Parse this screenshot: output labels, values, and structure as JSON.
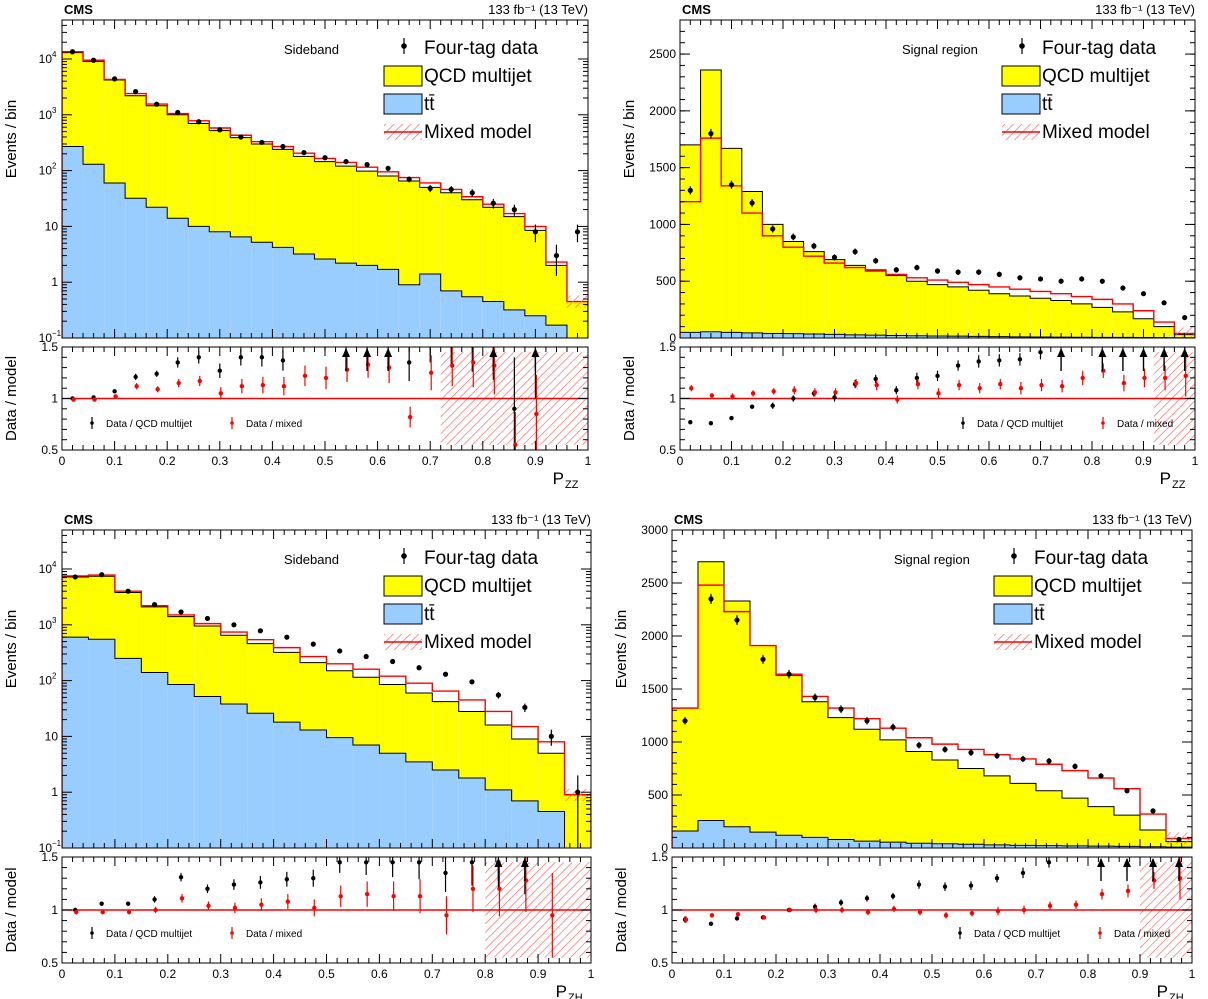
{
  "colors": {
    "qcd": "#ffff00",
    "ttbar": "#99ccff",
    "mixed": "#ff0000",
    "data": "#000000"
  },
  "ticks": {
    "x": [
      "0",
      "0.1",
      "0.2",
      "0.3",
      "0.4",
      "0.5",
      "0.6",
      "0.7",
      "0.8",
      "0.9",
      "1"
    ],
    "ratio": [
      "0.5",
      "1",
      "1.5"
    ]
  },
  "chart_data": [
    {
      "type": "histogram",
      "experiment": "CMS",
      "lumi": "133 fb⁻¹ (13 TeV)",
      "region": "Sideband",
      "ylabel": "Events / bin",
      "ratio_ylabel": "Data / model",
      "xlabel": "P",
      "xlabel_sub": "ZZ",
      "log": true,
      "ylim": [
        0.1,
        50000
      ],
      "y_ticks": [
        {
          "v": 0.1,
          "b": "10",
          "e": "−1"
        },
        {
          "v": 1,
          "t": "1"
        },
        {
          "v": 10,
          "t": "10"
        },
        {
          "v": 100,
          "b": "10",
          "e": "2"
        },
        {
          "v": 1000,
          "b": "10",
          "e": "3"
        },
        {
          "v": 10000,
          "b": "10",
          "e": "4"
        }
      ],
      "legend": [
        "Four-tag data",
        "QCD multijet",
        "tt̄",
        "Mixed model"
      ],
      "ratio_legend": [
        "Data / QCD multijet",
        "Data / mixed"
      ],
      "ratio_ylim": [
        0.5,
        1.5
      ],
      "bin_edges": [
        0,
        0.04,
        0.08,
        0.12,
        0.16,
        0.2,
        0.24,
        0.28,
        0.32,
        0.36,
        0.4,
        0.44,
        0.48,
        0.52,
        0.56,
        0.6,
        0.64,
        0.68,
        0.72,
        0.76,
        0.8,
        0.84,
        0.88,
        0.92,
        0.96,
        1.0
      ],
      "ttbar": [
        270,
        130,
        60,
        32,
        22,
        14,
        10,
        8,
        6.5,
        5.2,
        4.2,
        3.2,
        2.6,
        2.2,
        2.0,
        1.7,
        0.9,
        1.4,
        0.7,
        0.55,
        0.45,
        0.32,
        0.25,
        0.17,
        0.05
      ],
      "stack_total": [
        13000,
        9000,
        4200,
        2200,
        1450,
        1000,
        700,
        520,
        390,
        300,
        240,
        180,
        145,
        120,
        98,
        80,
        65,
        50,
        40,
        30,
        22,
        15,
        8.5,
        2.0,
        0.45
      ],
      "mixed": [
        13500,
        9500,
        4300,
        2400,
        1560,
        1050,
        780,
        580,
        430,
        330,
        270,
        205,
        165,
        140,
        115,
        95,
        75,
        60,
        46,
        34,
        25,
        17,
        10,
        2.3,
        0.45
      ],
      "data": [
        13500,
        9500,
        4400,
        2600,
        1550,
        1100,
        750,
        540,
        400,
        320,
        270,
        210,
        170,
        145,
        128,
        110,
        70,
        48,
        46,
        40,
        26,
        20,
        8,
        3,
        8
      ],
      "data_err": [
        120,
        97,
        66,
        51,
        39,
        33,
        27,
        23,
        20,
        18,
        16,
        14,
        13,
        12,
        11,
        10,
        8.4,
        6.9,
        6.8,
        6.3,
        5.1,
        4.5,
        2.8,
        1.7,
        2.8
      ],
      "ratio_qcd": [
        1.0,
        1.01,
        1.07,
        1.21,
        1.24,
        1.35,
        1.4,
        1.27,
        1.4,
        1.4,
        1.37,
        1.6,
        1.6,
        1.6,
        1.6,
        1.6,
        1.35,
        1.6,
        1.6,
        1.6,
        1.6,
        0.9,
        1.6,
        null,
        null
      ],
      "ratio_qcd_err": [
        0.02,
        0.02,
        0.02,
        0.03,
        0.03,
        0.05,
        0.06,
        0.07,
        0.08,
        0.09,
        0.1,
        0.12,
        0.14,
        0.16,
        0.17,
        0.19,
        0.18,
        0.25,
        0.28,
        0.34,
        0.42,
        0.5,
        0.6,
        null,
        null
      ],
      "ratio_mixed": [
        0.99,
        0.99,
        1.02,
        1.12,
        1.09,
        1.15,
        1.17,
        1.05,
        1.12,
        1.13,
        1.12,
        1.22,
        1.2,
        1.28,
        1.33,
        1.3,
        0.82,
        1.25,
        1.32,
        1.35,
        1.32,
        0.55,
        0.85,
        null,
        null
      ],
      "ratio_mixed_err": [
        0.02,
        0.02,
        0.02,
        0.03,
        0.03,
        0.04,
        0.05,
        0.06,
        0.07,
        0.08,
        0.09,
        0.1,
        0.11,
        0.12,
        0.13,
        0.15,
        0.1,
        0.17,
        0.2,
        0.24,
        0.28,
        0.32,
        0.38,
        null,
        null
      ],
      "ratio_qcd_arrows": [
        13,
        14,
        15,
        20,
        22
      ],
      "ratio_band_from": 18
    },
    {
      "type": "histogram",
      "experiment": "CMS",
      "lumi": "133 fb⁻¹ (13 TeV)",
      "region": "Signal region",
      "ylabel": "Events / bin",
      "ratio_ylabel": "Data / model",
      "xlabel": "P",
      "xlabel_sub": "ZZ",
      "log": false,
      "ylim": [
        0,
        2800
      ],
      "y_ticks": [
        {
          "v": 0,
          "t": "0"
        },
        {
          "v": 500,
          "t": "500"
        },
        {
          "v": 1000,
          "t": "1000"
        },
        {
          "v": 1500,
          "t": "1500"
        },
        {
          "v": 2000,
          "t": "2000"
        },
        {
          "v": 2500,
          "t": "2500"
        }
      ],
      "legend": [
        "Four-tag data",
        "QCD multijet",
        "tt̄",
        "Mixed model"
      ],
      "ratio_legend": [
        "Data / QCD multijet",
        "Data / mixed"
      ],
      "ratio_ylim": [
        0.5,
        1.5
      ],
      "bin_edges": [
        0,
        0.04,
        0.08,
        0.12,
        0.16,
        0.2,
        0.24,
        0.28,
        0.32,
        0.36,
        0.4,
        0.44,
        0.48,
        0.52,
        0.56,
        0.6,
        0.64,
        0.68,
        0.72,
        0.76,
        0.8,
        0.84,
        0.88,
        0.92,
        0.96,
        1.0
      ],
      "ttbar": [
        50,
        55,
        50,
        45,
        40,
        38,
        35,
        32,
        28,
        25,
        22,
        20,
        18,
        16,
        14,
        12,
        10,
        9,
        8,
        7,
        6,
        5,
        4,
        3,
        2
      ],
      "stack_total": [
        1700,
        2360,
        1670,
        1290,
        1000,
        850,
        760,
        690,
        640,
        600,
        550,
        500,
        470,
        450,
        420,
        390,
        370,
        350,
        330,
        300,
        270,
        230,
        170,
        100,
        30
      ],
      "mixed": [
        1200,
        1760,
        1340,
        1100,
        900,
        800,
        720,
        660,
        620,
        590,
        560,
        530,
        510,
        490,
        470,
        450,
        430,
        410,
        390,
        365,
        340,
        300,
        240,
        140,
        40
      ],
      "data": [
        1300,
        1800,
        1350,
        1190,
        960,
        890,
        810,
        710,
        760,
        680,
        600,
        620,
        590,
        580,
        580,
        560,
        530,
        520,
        500,
        520,
        500,
        440,
        390,
        310,
        180
      ],
      "data_err": [
        36,
        42,
        37,
        34,
        31,
        30,
        28,
        27,
        28,
        26,
        24,
        25,
        24,
        24,
        24,
        24,
        23,
        23,
        22,
        23,
        22,
        21,
        20,
        18,
        13
      ],
      "ratio_qcd": [
        0.77,
        0.76,
        0.81,
        0.92,
        0.93,
        1.0,
        1.05,
        1.01,
        1.14,
        1.19,
        1.08,
        1.2,
        1.22,
        1.32,
        1.36,
        1.37,
        1.38,
        1.45,
        1.6,
        1.6,
        1.6,
        1.6,
        1.6,
        1.6,
        1.6
      ],
      "ratio_qcd_err": [
        0.02,
        0.02,
        0.02,
        0.02,
        0.03,
        0.03,
        0.03,
        0.04,
        0.04,
        0.04,
        0.04,
        0.05,
        0.05,
        0.05,
        0.06,
        0.06,
        0.06,
        0.07,
        0.07,
        0.08,
        0.08,
        0.09,
        0.1,
        0.12,
        0.15
      ],
      "ratio_mixed": [
        1.1,
        1.03,
        1.02,
        1.05,
        1.07,
        1.08,
        1.06,
        1.06,
        1.15,
        1.13,
        0.99,
        1.14,
        1.05,
        1.13,
        1.1,
        1.14,
        1.1,
        1.13,
        1.12,
        1.2,
        1.27,
        1.15,
        1.2,
        1.2,
        1.22
      ],
      "ratio_mixed_err": [
        0.03,
        0.02,
        0.03,
        0.03,
        0.03,
        0.04,
        0.04,
        0.04,
        0.04,
        0.05,
        0.04,
        0.05,
        0.05,
        0.05,
        0.05,
        0.05,
        0.06,
        0.06,
        0.06,
        0.07,
        0.07,
        0.08,
        0.09,
        0.12,
        0.2
      ],
      "ratio_qcd_arrows": [
        18,
        20,
        21,
        22,
        23,
        24
      ],
      "ratio_band_from": 23
    },
    {
      "type": "histogram",
      "experiment": "CMS",
      "lumi": "133 fb⁻¹ (13 TeV)",
      "region": "Sideband",
      "ylabel": "Events / bin",
      "ratio_ylabel": "Data / model",
      "xlabel": "P",
      "xlabel_sub": "ZH",
      "log": true,
      "ylim": [
        0.1,
        50000
      ],
      "y_ticks": [
        {
          "v": 0.1,
          "b": "10",
          "e": "−1"
        },
        {
          "v": 1,
          "t": "1"
        },
        {
          "v": 10,
          "t": "10"
        },
        {
          "v": 100,
          "b": "10",
          "e": "2"
        },
        {
          "v": 1000,
          "b": "10",
          "e": "3"
        },
        {
          "v": 10000,
          "b": "10",
          "e": "4"
        }
      ],
      "legend": [
        "Four-tag data",
        "QCD multijet",
        "tt̄",
        "Mixed model"
      ],
      "ratio_legend": [
        "Data / QCD multijet",
        "Data / mixed"
      ],
      "ratio_ylim": [
        0.5,
        1.5
      ],
      "bin_edges": [
        0,
        0.05,
        0.1,
        0.15,
        0.2,
        0.25,
        0.3,
        0.35,
        0.4,
        0.45,
        0.5,
        0.55,
        0.6,
        0.65,
        0.7,
        0.75,
        0.8,
        0.85,
        0.9,
        0.95,
        1.0
      ],
      "ttbar": [
        600,
        550,
        250,
        140,
        85,
        52,
        38,
        26,
        18,
        13,
        9.5,
        7,
        5,
        3.5,
        2.5,
        1.8,
        1.1,
        0.7,
        0.45,
        0.05
      ],
      "stack_total": [
        7200,
        7400,
        3800,
        2100,
        1400,
        950,
        650,
        460,
        320,
        210,
        150,
        115,
        85,
        60,
        42,
        28,
        16,
        9,
        5,
        0.9
      ],
      "mixed": [
        7500,
        7800,
        4000,
        2200,
        1500,
        1050,
        740,
        540,
        390,
        270,
        200,
        160,
        120,
        90,
        65,
        45,
        28,
        15,
        8,
        0.9
      ],
      "data": [
        7200,
        7900,
        4000,
        2300,
        1700,
        1300,
        1000,
        780,
        600,
        450,
        340,
        270,
        220,
        170,
        130,
        95,
        55,
        33,
        10,
        1
      ],
      "data_err": [
        85,
        89,
        63,
        48,
        41,
        36,
        32,
        28,
        24,
        21,
        18,
        16,
        15,
        13,
        11,
        9.7,
        7.4,
        5.7,
        3.2,
        1
      ],
      "ratio_qcd": [
        1.0,
        1.06,
        1.06,
        1.1,
        1.31,
        1.2,
        1.24,
        1.26,
        1.29,
        1.3,
        1.45,
        1.45,
        1.45,
        1.45,
        1.35,
        1.45,
        1.45,
        1.45,
        null,
        null
      ],
      "ratio_qcd_err": [
        0.02,
        0.02,
        0.02,
        0.03,
        0.04,
        0.04,
        0.05,
        0.06,
        0.07,
        0.08,
        0.1,
        0.12,
        0.14,
        0.16,
        0.18,
        0.22,
        0.26,
        0.3,
        null,
        null
      ],
      "ratio_mixed": [
        0.98,
        0.98,
        0.98,
        1.0,
        1.11,
        1.04,
        1.02,
        1.05,
        1.08,
        1.02,
        1.13,
        1.15,
        1.13,
        1.13,
        0.95,
        1.2,
        1.2,
        1.28,
        0.95,
        null
      ],
      "ratio_mixed_err": [
        0.02,
        0.02,
        0.02,
        0.03,
        0.04,
        0.04,
        0.05,
        0.06,
        0.07,
        0.08,
        0.1,
        0.12,
        0.14,
        0.16,
        0.18,
        0.22,
        0.26,
        0.3,
        0.4,
        null
      ],
      "ratio_qcd_arrows": [
        16,
        17
      ],
      "ratio_band_from": 16
    },
    {
      "type": "histogram",
      "experiment": "CMS",
      "lumi": "133 fb⁻¹ (13 TeV)",
      "region": "Signal region",
      "ylabel": "Events / bin",
      "ratio_ylabel": "Data / model",
      "xlabel": "P",
      "xlabel_sub": "ZH",
      "log": false,
      "ylim": [
        0,
        3000
      ],
      "y_ticks": [
        {
          "v": 0,
          "t": "0"
        },
        {
          "v": 500,
          "t": "500"
        },
        {
          "v": 1000,
          "t": "1000"
        },
        {
          "v": 1500,
          "t": "1500"
        },
        {
          "v": 2000,
          "t": "2000"
        },
        {
          "v": 2500,
          "t": "2500"
        },
        {
          "v": 3000,
          "t": "3000"
        }
      ],
      "legend": [
        "Four-tag data",
        "QCD multijet",
        "tt̄",
        "Mixed model"
      ],
      "ratio_legend": [
        "Data / QCD multijet",
        "Data / mixed"
      ],
      "ratio_ylim": [
        0.5,
        1.5
      ],
      "bin_edges": [
        0,
        0.05,
        0.1,
        0.15,
        0.2,
        0.25,
        0.3,
        0.35,
        0.4,
        0.45,
        0.5,
        0.55,
        0.6,
        0.65,
        0.7,
        0.75,
        0.8,
        0.85,
        0.9,
        0.95,
        1.0
      ],
      "ttbar": [
        160,
        260,
        200,
        150,
        120,
        100,
        80,
        65,
        55,
        45,
        40,
        35,
        30,
        25,
        22,
        20,
        18,
        15,
        12,
        8
      ],
      "stack_total": [
        1320,
        2700,
        2330,
        1910,
        1630,
        1380,
        1230,
        1120,
        1020,
        910,
        830,
        750,
        680,
        610,
        540,
        470,
        390,
        310,
        170,
        60
      ],
      "mixed": [
        1320,
        2480,
        2230,
        1910,
        1640,
        1430,
        1320,
        1220,
        1130,
        1040,
        980,
        930,
        880,
        840,
        790,
        730,
        660,
        560,
        320,
        90
      ],
      "data": [
        1200,
        2350,
        2150,
        1780,
        1640,
        1420,
        1310,
        1200,
        1140,
        970,
        930,
        900,
        870,
        840,
        820,
        770,
        680,
        540,
        350,
        80
      ],
      "data_err": [
        35,
        48,
        46,
        42,
        40,
        38,
        36,
        35,
        34,
        31,
        30,
        30,
        29,
        29,
        29,
        28,
        26,
        23,
        19,
        9
      ],
      "ratio_qcd": [
        0.91,
        0.87,
        0.92,
        0.93,
        1.0,
        1.03,
        1.07,
        1.11,
        1.13,
        1.24,
        1.22,
        1.23,
        1.3,
        1.35,
        1.45,
        1.6,
        1.6,
        1.6,
        1.6,
        1.6
      ],
      "ratio_qcd_err": [
        0.03,
        0.02,
        0.02,
        0.02,
        0.02,
        0.03,
        0.03,
        0.03,
        0.03,
        0.04,
        0.04,
        0.04,
        0.04,
        0.05,
        0.05,
        0.06,
        0.07,
        0.08,
        0.1,
        0.2
      ],
      "ratio_mixed": [
        0.91,
        0.95,
        0.96,
        0.93,
        1.0,
        1.0,
        1.0,
        0.98,
        1.01,
        0.98,
        0.95,
        0.97,
        0.99,
        1.0,
        1.04,
        1.05,
        1.15,
        1.18,
        1.28,
        1.3
      ],
      "ratio_mixed_err": [
        0.03,
        0.02,
        0.02,
        0.02,
        0.02,
        0.03,
        0.03,
        0.03,
        0.03,
        0.03,
        0.03,
        0.03,
        0.04,
        0.04,
        0.04,
        0.04,
        0.05,
        0.06,
        0.08,
        0.2
      ],
      "ratio_qcd_arrows": [
        16,
        17,
        18,
        19
      ],
      "ratio_band_from": 18
    }
  ]
}
